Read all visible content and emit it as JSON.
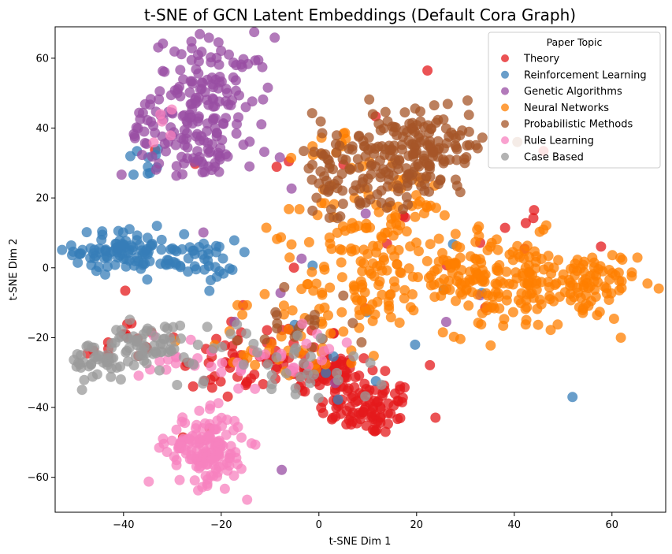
{
  "chart_data": {
    "type": "scatter",
    "title": "t-SNE of GCN Latent Embeddings (Default Cora Graph)",
    "xlabel": "t-SNE Dim 1",
    "ylabel": "t-SNE Dim 2",
    "xlim": [
      -54,
      71
    ],
    "ylim": [
      -70,
      69
    ],
    "xticks": [
      -40,
      -20,
      0,
      20,
      40,
      60
    ],
    "yticks": [
      -60,
      -40,
      -20,
      0,
      20,
      40,
      60
    ],
    "xtick_labels": [
      "−40",
      "−20",
      "0",
      "20",
      "40",
      "60"
    ],
    "ytick_labels": [
      "−60",
      "−40",
      "−20",
      "0",
      "20",
      "40",
      "60"
    ],
    "grid": false,
    "legend": {
      "title": "Paper Topic",
      "placement": "top-right"
    },
    "series": [
      {
        "name": "Theory",
        "color": "#e41a1c",
        "clusters": [
          {
            "cx": 10,
            "cy": -40,
            "sx": 5,
            "sy": 4,
            "n": 90
          },
          {
            "cx": 2,
            "cy": -30,
            "sx": 5,
            "sy": 3,
            "n": 60
          },
          {
            "cx": -10,
            "cy": -25,
            "sx": 8,
            "sy": 5,
            "n": 50
          },
          {
            "cx": -40,
            "cy": -22,
            "sx": 4,
            "sy": 4,
            "n": 15
          },
          {
            "cx": -20,
            "cy": -30,
            "sx": 5,
            "sy": 8,
            "n": 15
          },
          {
            "cx": 10,
            "cy": 10,
            "sx": 20,
            "sy": 20,
            "n": 25
          }
        ]
      },
      {
        "name": "Reinforcement Learning",
        "color": "#377eb8",
        "clusters": [
          {
            "cx": -40,
            "cy": 5,
            "sx": 5,
            "sy": 3,
            "n": 90
          },
          {
            "cx": -27,
            "cy": 2,
            "sx": 5,
            "sy": 3,
            "n": 50
          },
          {
            "cx": -35,
            "cy": 30,
            "sx": 3,
            "sy": 3,
            "n": 10
          },
          {
            "cx": 10,
            "cy": -20,
            "sx": 15,
            "sy": 15,
            "n": 12
          }
        ]
      },
      {
        "name": "Genetic Algorithms",
        "color": "#984ea3",
        "clusters": [
          {
            "cx": -22,
            "cy": 50,
            "sx": 6,
            "sy": 8,
            "n": 120
          },
          {
            "cx": -30,
            "cy": 38,
            "sx": 5,
            "sy": 6,
            "n": 60
          },
          {
            "cx": -20,
            "cy": 32,
            "sx": 4,
            "sy": 3,
            "n": 25
          },
          {
            "cx": 0,
            "cy": 0,
            "sx": 15,
            "sy": 15,
            "n": 10
          }
        ]
      },
      {
        "name": "Neural Networks",
        "color": "#ff7f00",
        "clusters": [
          {
            "cx": 55,
            "cy": -5,
            "sx": 5,
            "sy": 5,
            "n": 80
          },
          {
            "cx": 40,
            "cy": -5,
            "sx": 7,
            "sy": 7,
            "n": 120
          },
          {
            "cx": 28,
            "cy": 0,
            "sx": 5,
            "sy": 6,
            "n": 60
          },
          {
            "cx": 10,
            "cy": -5,
            "sx": 7,
            "sy": 6,
            "n": 80
          },
          {
            "cx": 8,
            "cy": 10,
            "sx": 6,
            "sy": 6,
            "n": 50
          },
          {
            "cx": 18,
            "cy": 18,
            "sx": 6,
            "sy": 6,
            "n": 30
          },
          {
            "cx": -5,
            "cy": -20,
            "sx": 10,
            "sy": 6,
            "n": 40
          },
          {
            "cx": 5,
            "cy": 32,
            "sx": 4,
            "sy": 4,
            "n": 15
          }
        ]
      },
      {
        "name": "Probabilistic Methods",
        "color": "#a65628",
        "clusters": [
          {
            "cx": 15,
            "cy": 33,
            "sx": 8,
            "sy": 7,
            "n": 150
          },
          {
            "cx": 25,
            "cy": 35,
            "sx": 5,
            "sy": 5,
            "n": 60
          },
          {
            "cx": 5,
            "cy": 22,
            "sx": 5,
            "sy": 5,
            "n": 30
          },
          {
            "cx": -5,
            "cy": -15,
            "sx": 6,
            "sy": 5,
            "n": 20
          }
        ]
      },
      {
        "name": "Rule Learning",
        "color": "#f781bf",
        "clusters": [
          {
            "cx": -23,
            "cy": -52,
            "sx": 4,
            "sy": 5,
            "n": 150
          },
          {
            "cx": -25,
            "cy": -25,
            "sx": 6,
            "sy": 4,
            "n": 20
          },
          {
            "cx": -8,
            "cy": -28,
            "sx": 8,
            "sy": 5,
            "n": 20
          },
          {
            "cx": -30,
            "cy": 40,
            "sx": 5,
            "sy": 5,
            "n": 5
          }
        ]
      },
      {
        "name": "Case Based",
        "color": "#999999",
        "clusters": [
          {
            "cx": -45,
            "cy": -27,
            "sx": 3,
            "sy": 3,
            "n": 40
          },
          {
            "cx": -35,
            "cy": -22,
            "sx": 4,
            "sy": 3,
            "n": 60
          },
          {
            "cx": -15,
            "cy": -25,
            "sx": 8,
            "sy": 5,
            "n": 25
          },
          {
            "cx": 0,
            "cy": -30,
            "sx": 6,
            "sy": 5,
            "n": 15
          }
        ]
      }
    ]
  }
}
